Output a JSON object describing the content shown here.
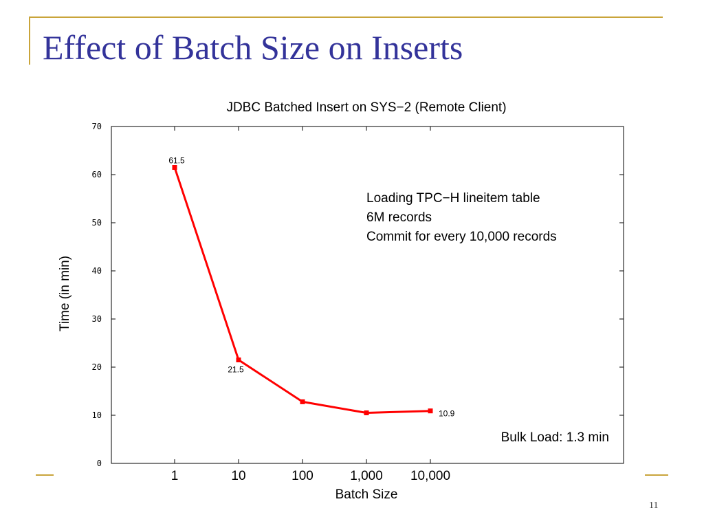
{
  "slide": {
    "title": "Effect of Batch Size on Inserts",
    "page_number": "11"
  },
  "chart_data": {
    "type": "line",
    "title": "JDBC Batched Insert on SYS−2 (Remote Client)",
    "xlabel": "Batch Size",
    "ylabel": "Time (in min)",
    "x_scale": "log",
    "categories": [
      "1",
      "10",
      "100",
      "1,000",
      "10,000"
    ],
    "x": [
      1,
      10,
      100,
      1000,
      10000
    ],
    "ylim": [
      0,
      70
    ],
    "yticks": [
      "0",
      "10",
      "20",
      "30",
      "40",
      "50",
      "60",
      "70"
    ],
    "series": [
      {
        "values": [
          61.5,
          21.5,
          12.8,
          10.5,
          10.9
        ],
        "color": "#ff0000"
      }
    ],
    "data_labels": [
      {
        "index": 0,
        "text": "61.5"
      },
      {
        "index": 1,
        "text": "21.5"
      },
      {
        "index": 4,
        "text": "10.9"
      }
    ],
    "annotations": [
      "Loading TPC−H lineitem table",
      "6M records",
      "Commit for every 10,000 records"
    ],
    "note": "Bulk Load: 1.3 min",
    "grid": false,
    "legend": "none"
  }
}
